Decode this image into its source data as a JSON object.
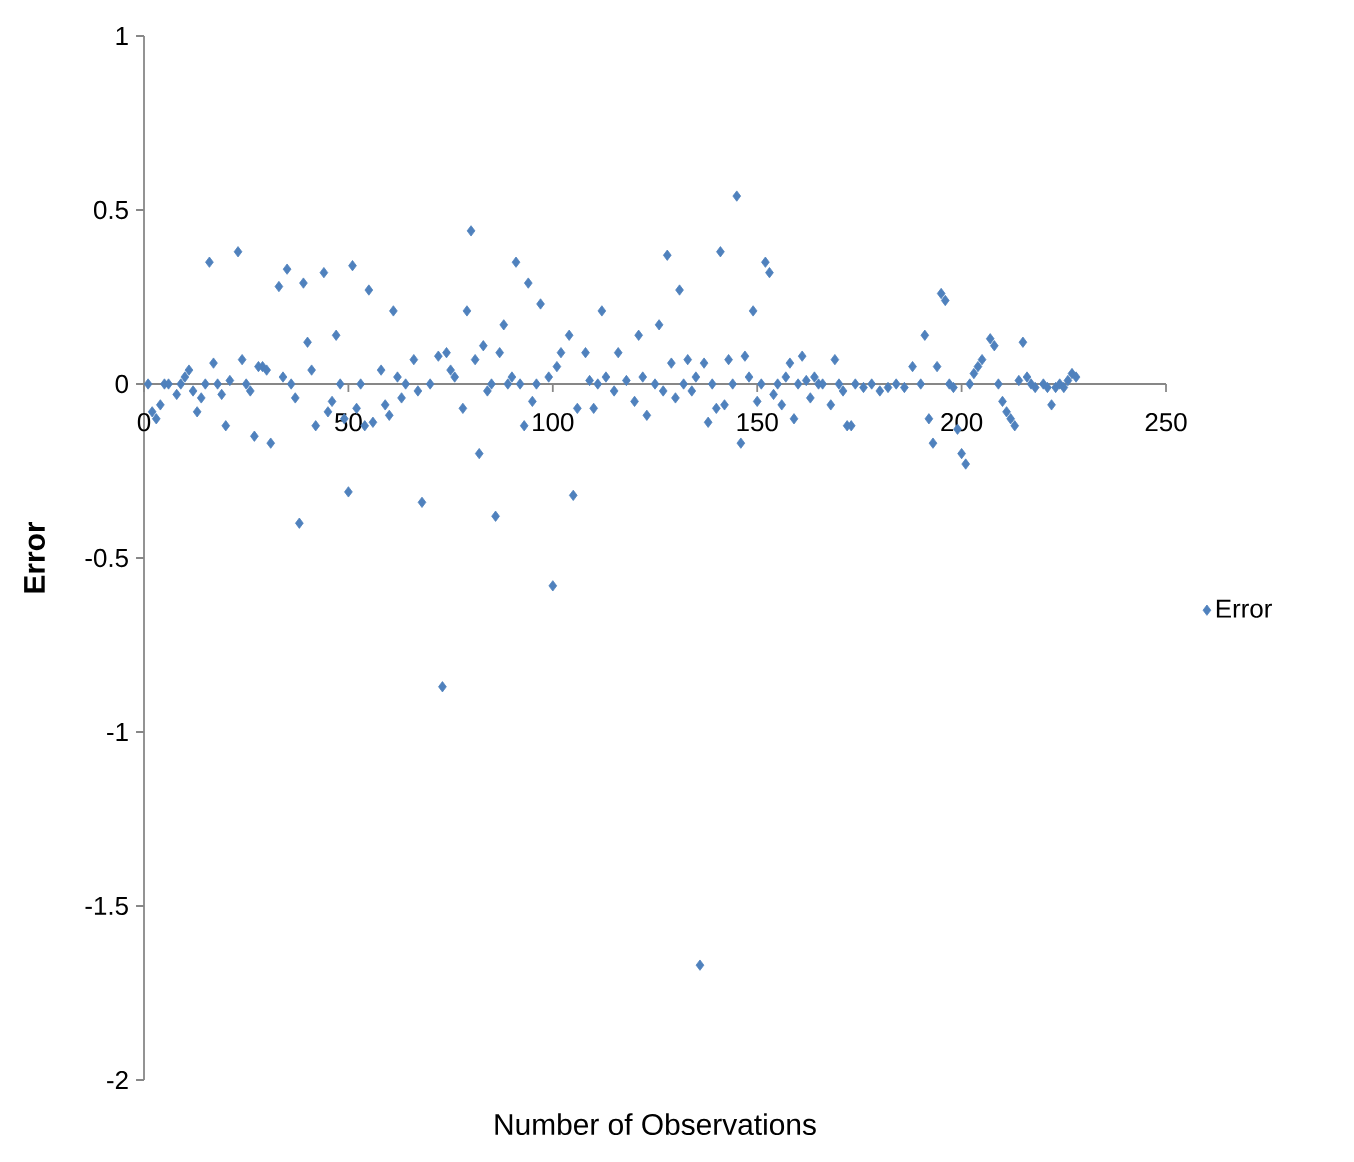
{
  "chart_data": {
    "type": "scatter",
    "xlabel": "Number of Observations",
    "ylabel": "Error",
    "xlim": [
      0,
      250
    ],
    "xticks": [
      0,
      50,
      100,
      150,
      200,
      250
    ],
    "ylim": [
      -2,
      1
    ],
    "yticks": [
      -2,
      -1.5,
      -1,
      -0.5,
      0,
      0.5,
      1
    ],
    "marker": "diamond",
    "legend": "right",
    "grid": false,
    "series": [
      {
        "name": "Error",
        "color": "#4f81bd",
        "x": [
          1,
          2,
          3,
          4,
          5,
          6,
          8,
          9,
          10,
          11,
          12,
          13,
          14,
          15,
          16,
          17,
          18,
          19,
          20,
          21,
          23,
          24,
          25,
          26,
          27,
          28,
          29,
          30,
          31,
          33,
          34,
          35,
          36,
          37,
          38,
          39,
          40,
          41,
          42,
          44,
          45,
          46,
          47,
          48,
          49,
          50,
          51,
          52,
          53,
          54,
          55,
          56,
          58,
          59,
          60,
          61,
          62,
          63,
          64,
          66,
          67,
          68,
          70,
          72,
          73,
          74,
          75,
          76,
          78,
          79,
          80,
          81,
          82,
          83,
          84,
          85,
          86,
          87,
          88,
          89,
          90,
          91,
          92,
          93,
          94,
          95,
          96,
          97,
          99,
          100,
          101,
          102,
          104,
          105,
          106,
          108,
          109,
          110,
          111,
          112,
          113,
          115,
          116,
          118,
          120,
          121,
          122,
          123,
          125,
          126,
          127,
          128,
          129,
          130,
          131,
          132,
          133,
          134,
          135,
          136,
          137,
          138,
          139,
          140,
          141,
          142,
          143,
          144,
          145,
          146,
          147,
          148,
          149,
          150,
          151,
          152,
          153,
          154,
          155,
          156,
          157,
          158,
          159,
          160,
          161,
          162,
          163,
          164,
          165,
          166,
          168,
          169,
          170,
          171,
          172,
          173,
          174,
          176,
          178,
          180,
          182,
          184,
          186,
          188,
          190,
          191,
          192,
          193,
          194,
          195,
          196,
          197,
          198,
          199,
          200,
          201,
          202,
          203,
          204,
          205,
          207,
          208,
          209,
          210,
          211,
          212,
          213,
          214,
          215,
          216,
          217,
          218,
          220,
          221,
          222,
          223,
          224,
          225,
          226,
          227,
          228
        ],
        "values": [
          0.0,
          -0.08,
          -0.1,
          -0.06,
          0.0,
          0.0,
          -0.03,
          0.0,
          0.02,
          0.04,
          -0.02,
          -0.08,
          -0.04,
          0.0,
          0.35,
          0.06,
          0.0,
          -0.03,
          -0.12,
          0.01,
          0.38,
          0.07,
          0.0,
          -0.02,
          -0.15,
          0.05,
          0.05,
          0.04,
          -0.17,
          0.28,
          0.02,
          0.33,
          0.0,
          -0.04,
          -0.4,
          0.29,
          0.12,
          0.04,
          -0.12,
          0.32,
          -0.08,
          -0.05,
          0.14,
          0.0,
          -0.1,
          -0.31,
          0.34,
          -0.07,
          0.0,
          -0.12,
          0.27,
          -0.11,
          0.04,
          -0.06,
          -0.09,
          0.21,
          0.02,
          -0.04,
          0.0,
          0.07,
          -0.02,
          -0.34,
          0.0,
          0.08,
          -0.87,
          0.09,
          0.04,
          0.02,
          -0.07,
          0.21,
          0.44,
          0.07,
          -0.2,
          0.11,
          -0.02,
          0.0,
          -0.38,
          0.09,
          0.17,
          0.0,
          0.02,
          0.35,
          0.0,
          -0.12,
          0.29,
          -0.05,
          0.0,
          0.23,
          0.02,
          -0.58,
          0.05,
          0.09,
          0.14,
          -0.32,
          -0.07,
          0.09,
          0.01,
          -0.07,
          0.0,
          0.21,
          0.02,
          -0.02,
          0.09,
          0.01,
          -0.05,
          0.14,
          0.02,
          -0.09,
          0.0,
          0.17,
          -0.02,
          0.37,
          0.06,
          -0.04,
          0.27,
          0.0,
          0.07,
          -0.02,
          0.02,
          -1.67,
          0.06,
          -0.11,
          0.0,
          -0.07,
          0.38,
          -0.06,
          0.07,
          0.0,
          0.54,
          -0.17,
          0.08,
          0.02,
          0.21,
          -0.05,
          0.0,
          0.35,
          0.32,
          -0.03,
          0.0,
          -0.06,
          0.02,
          0.06,
          -0.1,
          0.0,
          0.08,
          0.01,
          -0.04,
          0.02,
          0.0,
          0.0,
          -0.06,
          0.07,
          0.0,
          -0.02,
          -0.12,
          -0.12,
          0.0,
          -0.01,
          0.0,
          -0.02,
          -0.01,
          0.0,
          -0.01,
          0.05,
          0.0,
          0.14,
          -0.1,
          -0.17,
          0.05,
          0.26,
          0.24,
          0.0,
          -0.01,
          -0.13,
          -0.2,
          -0.23,
          0.0,
          0.03,
          0.05,
          0.07,
          0.13,
          0.11,
          0.0,
          -0.05,
          -0.08,
          -0.1,
          -0.12,
          0.01,
          0.12,
          0.02,
          0.0,
          -0.01,
          0.0,
          -0.01,
          -0.06,
          -0.01,
          0.0,
          -0.01,
          0.01,
          0.03,
          0.02
        ]
      }
    ]
  }
}
